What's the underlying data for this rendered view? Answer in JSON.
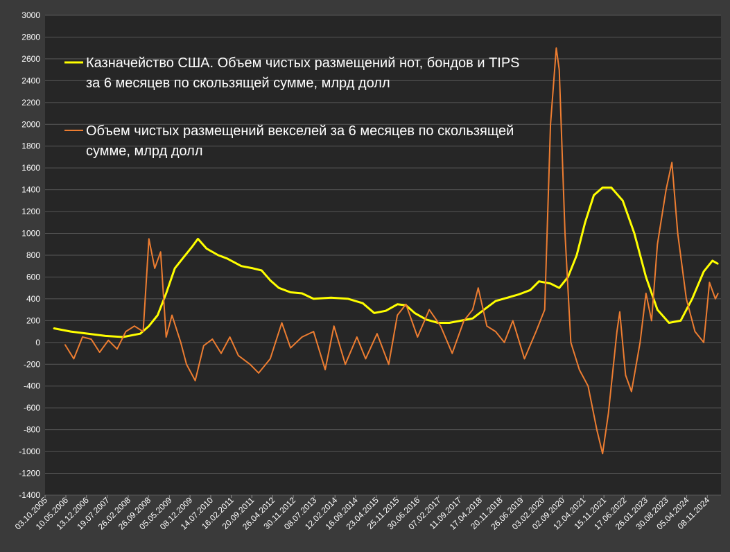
{
  "chart_data": {
    "type": "line",
    "ylim": [
      -1400,
      3000
    ],
    "yticks": [
      -1400,
      -1200,
      -1000,
      -800,
      -600,
      -400,
      -200,
      0,
      200,
      400,
      600,
      800,
      1000,
      1200,
      1400,
      1600,
      1800,
      2000,
      2200,
      2400,
      2600,
      2800,
      3000
    ],
    "xlim": [
      "2005-10-03",
      "2025-04-01"
    ],
    "xticks": [
      "03.10.2005",
      "10.05.2006",
      "13.12.2006",
      "19.07.2007",
      "26.02.2008",
      "26.09.2008",
      "05.05.2009",
      "08.12.2009",
      "14.07.2010",
      "16.02.2011",
      "20.09.2011",
      "26.04.2012",
      "30.11.2012",
      "08.07.2013",
      "12.02.2014",
      "16.09.2014",
      "23.04.2015",
      "25.11.2015",
      "30.06.2016",
      "07.02.2017",
      "11.09.2017",
      "17.04.2018",
      "20.11.2018",
      "26.06.2019",
      "03.02.2020",
      "02.09.2020",
      "12.04.2021",
      "15.11.2021",
      "17.06.2022",
      "26.01.2023",
      "30.08.2023",
      "05.04.2024",
      "08.11.2024"
    ],
    "grid": true,
    "legend_position": "top-left",
    "series": [
      {
        "name": "Казначейство США. Объем чистых размещений нот, бондов и TIPS",
        "name_line2": "за 6 месяцев по скользящей сумме, млрд долл",
        "color": "#ffff00",
        "points": [
          [
            "2006-01-01",
            130
          ],
          [
            "2006-07-01",
            100
          ],
          [
            "2007-01-01",
            80
          ],
          [
            "2007-07-01",
            60
          ],
          [
            "2008-01-01",
            50
          ],
          [
            "2008-07-01",
            80
          ],
          [
            "2008-10-01",
            150
          ],
          [
            "2009-01-01",
            250
          ],
          [
            "2009-04-01",
            450
          ],
          [
            "2009-07-01",
            680
          ],
          [
            "2009-10-01",
            780
          ],
          [
            "2010-01-01",
            880
          ],
          [
            "2010-03-01",
            950
          ],
          [
            "2010-06-01",
            860
          ],
          [
            "2010-10-01",
            800
          ],
          [
            "2011-01-01",
            770
          ],
          [
            "2011-06-01",
            700
          ],
          [
            "2011-10-01",
            680
          ],
          [
            "2012-01-01",
            660
          ],
          [
            "2012-04-01",
            570
          ],
          [
            "2012-07-01",
            500
          ],
          [
            "2012-11-01",
            460
          ],
          [
            "2013-03-01",
            450
          ],
          [
            "2013-07-01",
            400
          ],
          [
            "2014-01-01",
            410
          ],
          [
            "2014-07-01",
            400
          ],
          [
            "2014-12-01",
            360
          ],
          [
            "2015-04-01",
            270
          ],
          [
            "2015-08-01",
            290
          ],
          [
            "2015-12-01",
            350
          ],
          [
            "2016-03-01",
            340
          ],
          [
            "2016-06-01",
            270
          ],
          [
            "2016-10-01",
            210
          ],
          [
            "2017-02-01",
            180
          ],
          [
            "2017-06-01",
            180
          ],
          [
            "2017-10-01",
            200
          ],
          [
            "2018-02-01",
            220
          ],
          [
            "2018-06-01",
            300
          ],
          [
            "2018-10-01",
            380
          ],
          [
            "2019-02-01",
            410
          ],
          [
            "2019-06-01",
            440
          ],
          [
            "2019-10-01",
            480
          ],
          [
            "2020-01-01",
            560
          ],
          [
            "2020-05-01",
            540
          ],
          [
            "2020-08-01",
            500
          ],
          [
            "2020-11-01",
            600
          ],
          [
            "2021-02-01",
            800
          ],
          [
            "2021-05-01",
            1100
          ],
          [
            "2021-08-01",
            1350
          ],
          [
            "2021-11-01",
            1420
          ],
          [
            "2022-02-01",
            1420
          ],
          [
            "2022-06-01",
            1300
          ],
          [
            "2022-10-01",
            1000
          ],
          [
            "2023-02-01",
            600
          ],
          [
            "2023-06-01",
            300
          ],
          [
            "2023-10-01",
            180
          ],
          [
            "2024-02-01",
            200
          ],
          [
            "2024-06-01",
            400
          ],
          [
            "2024-10-01",
            650
          ],
          [
            "2025-01-01",
            750
          ],
          [
            "2025-03-01",
            720
          ]
        ]
      },
      {
        "name": "Объем чистых размещений векселей за 6 месяцев по скользящей",
        "name_line2": "сумме, млрд долл",
        "color": "#ed7d31",
        "points": [
          [
            "2006-05-01",
            -20
          ],
          [
            "2006-08-01",
            -150
          ],
          [
            "2006-11-01",
            50
          ],
          [
            "2007-02-01",
            30
          ],
          [
            "2007-05-01",
            -90
          ],
          [
            "2007-08-01",
            20
          ],
          [
            "2007-11-01",
            -60
          ],
          [
            "2008-02-01",
            100
          ],
          [
            "2008-05-01",
            150
          ],
          [
            "2008-08-01",
            100
          ],
          [
            "2008-10-01",
            950
          ],
          [
            "2008-12-01",
            680
          ],
          [
            "2009-02-01",
            830
          ],
          [
            "2009-04-01",
            50
          ],
          [
            "2009-06-01",
            250
          ],
          [
            "2009-09-01",
            0
          ],
          [
            "2009-11-01",
            -200
          ],
          [
            "2010-02-01",
            -350
          ],
          [
            "2010-05-01",
            -30
          ],
          [
            "2010-08-01",
            30
          ],
          [
            "2010-11-01",
            -100
          ],
          [
            "2011-02-01",
            50
          ],
          [
            "2011-05-01",
            -120
          ],
          [
            "2011-09-01",
            -200
          ],
          [
            "2011-12-01",
            -280
          ],
          [
            "2012-04-01",
            -150
          ],
          [
            "2012-08-01",
            180
          ],
          [
            "2012-11-01",
            -50
          ],
          [
            "2013-03-01",
            50
          ],
          [
            "2013-07-01",
            100
          ],
          [
            "2013-11-01",
            -250
          ],
          [
            "2014-02-01",
            150
          ],
          [
            "2014-06-01",
            -200
          ],
          [
            "2014-10-01",
            50
          ],
          [
            "2015-01-01",
            -150
          ],
          [
            "2015-05-01",
            80
          ],
          [
            "2015-09-01",
            -200
          ],
          [
            "2015-12-01",
            250
          ],
          [
            "2016-03-01",
            350
          ],
          [
            "2016-07-01",
            50
          ],
          [
            "2016-11-01",
            300
          ],
          [
            "2017-03-01",
            150
          ],
          [
            "2017-07-01",
            -100
          ],
          [
            "2017-11-01",
            200
          ],
          [
            "2018-02-01",
            300
          ],
          [
            "2018-04-01",
            500
          ],
          [
            "2018-07-01",
            150
          ],
          [
            "2018-10-01",
            100
          ],
          [
            "2019-01-01",
            0
          ],
          [
            "2019-04-01",
            200
          ],
          [
            "2019-08-01",
            -150
          ],
          [
            "2019-12-01",
            100
          ],
          [
            "2020-03-01",
            300
          ],
          [
            "2020-05-01",
            2000
          ],
          [
            "2020-07-01",
            2700
          ],
          [
            "2020-08-01",
            2500
          ],
          [
            "2020-10-01",
            1000
          ],
          [
            "2020-12-01",
            0
          ],
          [
            "2021-03-01",
            -250
          ],
          [
            "2021-06-01",
            -400
          ],
          [
            "2021-09-01",
            -800
          ],
          [
            "2021-11-01",
            -1020
          ],
          [
            "2022-01-01",
            -650
          ],
          [
            "2022-04-01",
            100
          ],
          [
            "2022-05-01",
            280
          ],
          [
            "2022-07-01",
            -300
          ],
          [
            "2022-09-01",
            -450
          ],
          [
            "2022-12-01",
            0
          ],
          [
            "2023-02-01",
            450
          ],
          [
            "2023-04-01",
            200
          ],
          [
            "2023-06-01",
            900
          ],
          [
            "2023-09-01",
            1400
          ],
          [
            "2023-11-01",
            1650
          ],
          [
            "2024-01-01",
            1000
          ],
          [
            "2024-04-01",
            400
          ],
          [
            "2024-07-01",
            100
          ],
          [
            "2024-10-01",
            0
          ],
          [
            "2024-12-01",
            550
          ],
          [
            "2025-02-01",
            400
          ],
          [
            "2025-03-01",
            450
          ]
        ]
      }
    ]
  }
}
